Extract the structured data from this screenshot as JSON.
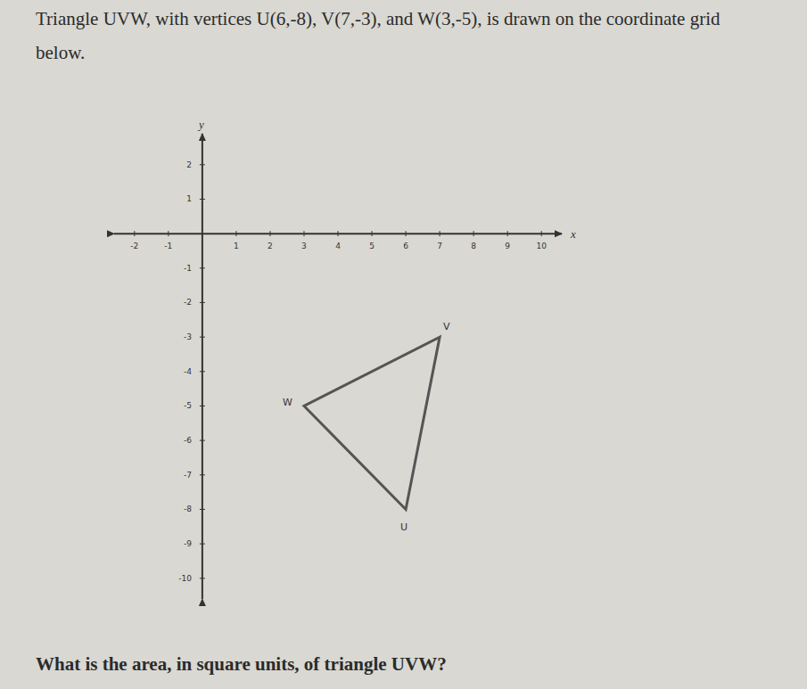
{
  "chart_data": {
    "type": "line",
    "title": "Triangle UVW, with vertices U(6,-8), V(7,-3), and W(3,-5), is drawn on the coordinate grid below.",
    "annotations": [
      "What is the area, in square units, of triangle UVW?"
    ],
    "x": [
      6,
      7,
      3
    ],
    "values": [
      -8,
      -3,
      -5
    ],
    "point_labels": [
      "U",
      "V",
      "W"
    ],
    "x_label": "x",
    "y_label": "y",
    "xlim": [
      -2.6,
      10.6
    ],
    "ylim": [
      -10.6,
      2.9
    ],
    "xticks": [
      -2,
      -1,
      1,
      2,
      3,
      4,
      5,
      6,
      7,
      8,
      9,
      10
    ],
    "yticks": [
      2,
      1,
      -1,
      -2,
      -3,
      -4,
      -5,
      -6,
      -7,
      -8,
      -9,
      -10
    ],
    "color": "#555555",
    "grid": false
  }
}
